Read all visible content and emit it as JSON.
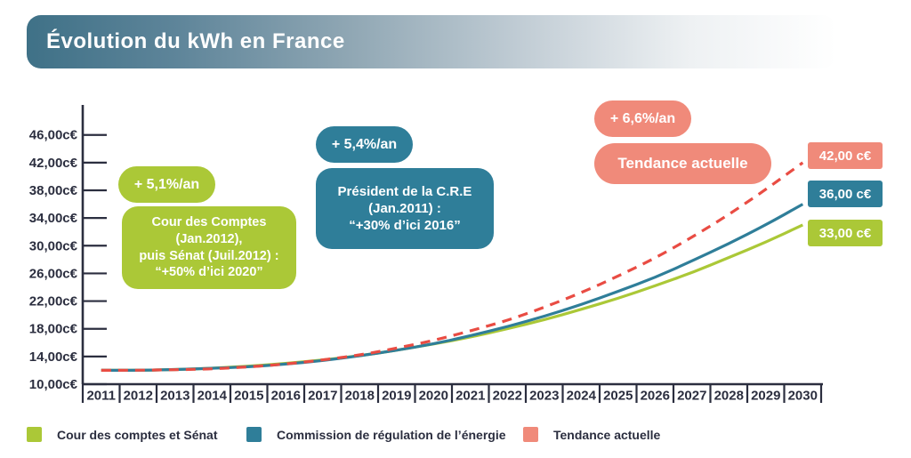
{
  "title": "Évolution du kWh en France",
  "colors": {
    "green": "#abc837",
    "teal": "#2f7e99",
    "salmon": "#f08a7a",
    "red_line": "#e94c43",
    "axis_text": "#2b2e3f",
    "title_gradient_start": "#3f7187"
  },
  "chart_data": {
    "type": "line",
    "title": "Évolution du kWh en France",
    "unit": "c€ / kWh",
    "x": [
      "2011",
      "2012",
      "2013",
      "2014",
      "2015",
      "2016",
      "2017",
      "2018",
      "2019",
      "2020",
      "2021",
      "2022",
      "2023",
      "2024",
      "2025",
      "2026",
      "2027",
      "2028",
      "2029",
      "2030"
    ],
    "y_ticks": [
      {
        "v": 46,
        "label": "46,00c€"
      },
      {
        "v": 42,
        "label": "42,00c€"
      },
      {
        "v": 38,
        "label": "38,00c€"
      },
      {
        "v": 34,
        "label": "34,00c€"
      },
      {
        "v": 30,
        "label": "30,00c€"
      },
      {
        "v": 26,
        "label": "26,00c€"
      },
      {
        "v": 22,
        "label": "22,00c€"
      },
      {
        "v": 18,
        "label": "18,00c€"
      },
      {
        "v": 14,
        "label": "14,00c€"
      },
      {
        "v": 10,
        "label": "10,00c€"
      }
    ],
    "ylim": [
      10,
      48
    ],
    "grid": false,
    "legend_position": "bottom",
    "series": [
      {
        "name": "Cour des comptes et Sénat",
        "color": "#abc837",
        "dashed": false,
        "growth_rate_label": "+ 5,1%/an",
        "end_label": "33,00 c€",
        "values": [
          12.0,
          12.0,
          12.1,
          12.3,
          12.6,
          13.0,
          13.5,
          14.1,
          14.9,
          15.8,
          16.8,
          18.0,
          19.3,
          20.8,
          22.4,
          24.2,
          26.1,
          28.3,
          30.5,
          33.0
        ]
      },
      {
        "name": "Commission de régulation de l’énergie",
        "color": "#2f7e99",
        "dashed": false,
        "growth_rate_label": "+ 5,4%/an",
        "end_label": "36,00 c€",
        "values": [
          12.0,
          12.0,
          12.1,
          12.3,
          12.5,
          12.9,
          13.4,
          14.1,
          14.9,
          15.8,
          17.0,
          18.3,
          19.8,
          21.5,
          23.4,
          25.4,
          27.8,
          30.3,
          33.0,
          36.0
        ]
      },
      {
        "name": "Tendance actuelle",
        "color": "#f08a7a",
        "line_color": "#e94c43",
        "dashed": true,
        "growth_rate_label": "+ 6,6%/an",
        "end_label": "42,00 c€",
        "values": [
          12.0,
          12.0,
          12.1,
          12.2,
          12.5,
          12.9,
          13.5,
          14.2,
          15.2,
          16.3,
          17.7,
          19.2,
          21.1,
          23.2,
          25.6,
          28.2,
          31.2,
          34.5,
          38.1,
          42.0
        ]
      }
    ]
  },
  "annotations": {
    "cour": {
      "rate": "+ 5,1%/an",
      "note": "Cour des Comptes\n(Jan.2012),\npuis Sénat (Juil.2012) :\n“+50% d’ici 2020”"
    },
    "cre": {
      "rate": "+ 5,4%/an",
      "note": "Président de la C.R.E\n(Jan.2011) :\n“+30% d’ici 2016”"
    },
    "tendance": {
      "rate": "+ 6,6%/an",
      "note": "Tendance actuelle"
    }
  }
}
